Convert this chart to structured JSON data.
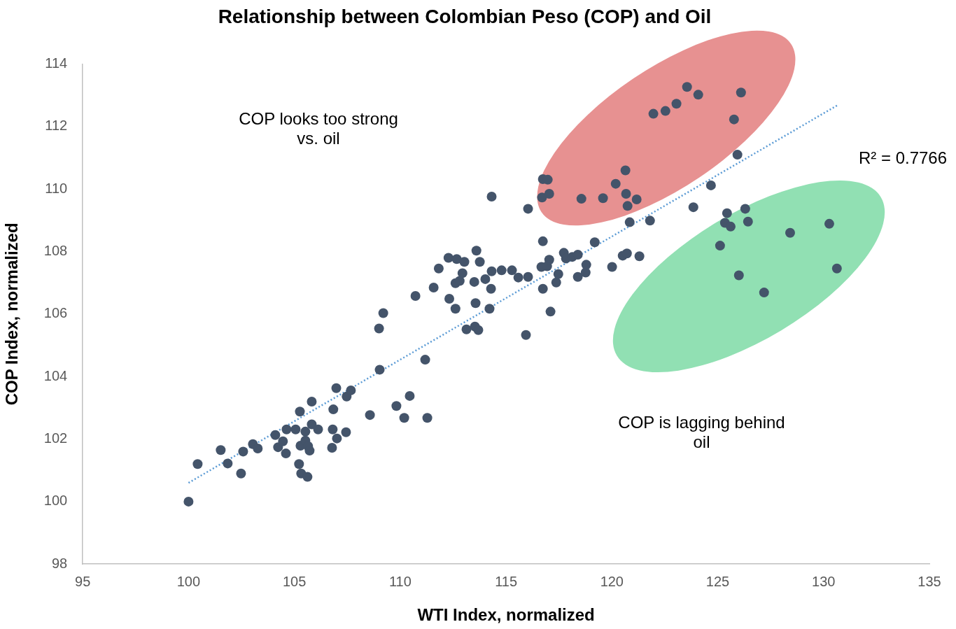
{
  "chart_data": {
    "type": "scatter",
    "title": "Relationship between Colombian Peso (COP) and Oil",
    "xlabel": "WTI Index, normalized",
    "ylabel": "COP Index, normalized",
    "xlim": [
      95,
      135
    ],
    "xticks": [
      95,
      100,
      105,
      110,
      115,
      120,
      125,
      130,
      135
    ],
    "ylim": [
      98,
      114
    ],
    "yticks": [
      98,
      100,
      102,
      104,
      106,
      108,
      110,
      112,
      114
    ],
    "grid": false,
    "legend": false,
    "marker": "circle",
    "annotations": [
      "COP looks too strong vs. oil",
      "COP is lagging behind oil",
      "R² = 0.7766"
    ],
    "series": [
      {
        "type": "scatter",
        "color": "#44546a",
        "x": [
          100,
          100.43,
          101.52,
          101.85,
          102.48,
          102.58,
          103.04,
          103.27,
          104.1,
          104.23,
          104.46,
          104.6,
          104.63,
          105.06,
          105.26,
          105.22,
          105.29,
          105.32,
          105.52,
          105.52,
          105.62,
          105.65,
          105.72,
          105.82,
          105.82,
          106.12,
          106.81,
          106.84,
          106.78,
          106.98,
          107.01,
          107.44,
          107.47,
          107.67,
          108.57,
          109.0,
          109.03,
          109.2,
          109.82,
          110.19,
          110.45,
          111.18,
          111.28,
          110.72,
          111.58,
          111.82,
          112.28,
          112.32,
          112.61,
          112.61,
          112.67,
          112.81,
          112.94,
          113.03,
          113.13,
          113.5,
          113.53,
          113.56,
          113.6,
          113.69,
          113.76,
          114.02,
          114.22,
          114.29,
          114.32,
          114.32,
          114.79,
          115.28,
          115.58,
          116.04,
          115.94,
          116.04,
          116.67,
          116.7,
          116.74,
          116.74,
          116.74,
          116.94,
          117.04,
          117.1,
          117.37,
          117.47,
          117.73,
          117.83,
          118.13,
          118.39,
          118.39,
          118.76,
          118.79,
          119.19,
          120.01,
          120.51,
          120.71,
          120.74,
          120.84,
          121.17,
          121.3,
          121.8,
          123.85,
          124.68,
          125.93,
          116.97,
          117.04,
          118.56,
          119.58,
          120.18,
          120.64,
          120.67,
          121.96,
          122.53,
          123.05,
          123.55,
          124.08,
          125.77,
          126.1,
          125.11,
          125.34,
          125.44,
          125.61,
          126.0,
          126.3,
          126.43,
          127.19,
          128.42,
          130.27,
          130.63
        ],
        "values": [
          100,
          101.2,
          101.65,
          101.22,
          100.9,
          101.6,
          101.84,
          101.7,
          102.13,
          101.74,
          101.93,
          101.54,
          102.31,
          102.31,
          102.88,
          101.2,
          101.79,
          100.9,
          102.24,
          101.95,
          100.79,
          101.77,
          101.63,
          103.2,
          102.47,
          102.31,
          102.31,
          102.95,
          101.72,
          103.63,
          102.02,
          102.22,
          103.36,
          103.56,
          102.77,
          105.54,
          104.22,
          106.03,
          103.06,
          102.68,
          103.38,
          104.54,
          102.68,
          106.58,
          106.85,
          107.46,
          107.8,
          106.49,
          106.17,
          106.99,
          107.76,
          107.06,
          107.31,
          107.67,
          105.51,
          107.03,
          105.6,
          106.35,
          108.03,
          105.49,
          107.67,
          107.12,
          106.17,
          106.81,
          107.37,
          109.76,
          107.4,
          107.4,
          107.17,
          107.19,
          105.33,
          109.37,
          107.51,
          109.73,
          108.33,
          106.81,
          110.32,
          107.53,
          107.74,
          106.08,
          107.01,
          107.28,
          107.96,
          107.78,
          107.83,
          107.9,
          107.19,
          107.33,
          107.58,
          108.3,
          107.51,
          107.87,
          107.94,
          109.46,
          108.94,
          109.67,
          107.85,
          108.99,
          109.42,
          110.12,
          111.1,
          110.3,
          109.85,
          109.69,
          109.71,
          110.17,
          110.6,
          109.85,
          112.41,
          112.5,
          112.73,
          113.27,
          113.02,
          112.23,
          113.09,
          108.19,
          108.92,
          109.23,
          108.8,
          107.24,
          109.37,
          108.96,
          106.69,
          108.6,
          108.89,
          107.46
        ]
      },
      {
        "type": "line",
        "color": "#5b9bd5",
        "line_style": "dotted",
        "marker": "none",
        "x": [
          100,
          130.7
        ],
        "values": [
          100.6,
          112.7
        ]
      }
    ]
  }
}
